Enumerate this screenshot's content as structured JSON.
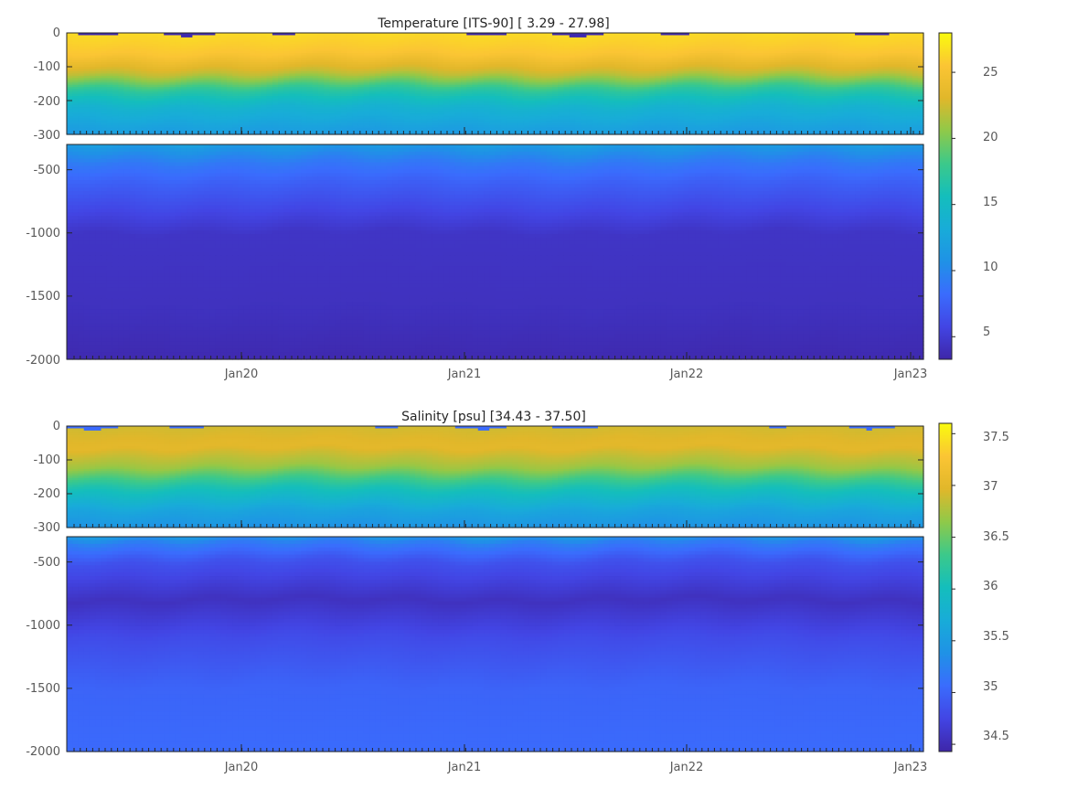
{
  "chart_data": [
    {
      "type": "heatmap",
      "title": "Temperature [ITS-90]   [ 3.29 - 27.98]",
      "xlabel": "",
      "ylabel": "",
      "x_tick_labels": [
        "Jan20",
        "Jan21",
        "Jan22",
        "Jan23"
      ],
      "upper_panel": {
        "ylim": [
          -300,
          0
        ],
        "y_ticks": [
          0,
          -100,
          -200,
          -300
        ],
        "y_tick_labels": [
          "0",
          "-100",
          "-200",
          "-300"
        ]
      },
      "lower_panel": {
        "ylim": [
          -2000,
          -300
        ],
        "y_ticks": [
          -500,
          -1000,
          -1500,
          -2000
        ],
        "y_tick_labels": [
          "-500",
          "-1000",
          "-1500",
          "-2000"
        ]
      },
      "value_range": [
        3.29,
        27.98
      ],
      "colorbar": {
        "ticks": [
          5,
          10,
          15,
          20,
          25
        ],
        "tick_labels": [
          "5",
          "10",
          "15",
          "20",
          "25"
        ],
        "range": [
          3.29,
          27.98
        ]
      },
      "depth_profile_levels": [
        {
          "depth": 0,
          "value": 26.5
        },
        {
          "depth": -60,
          "value": 25.5
        },
        {
          "depth": -120,
          "value": 22
        },
        {
          "depth": -170,
          "value": 17
        },
        {
          "depth": -220,
          "value": 14
        },
        {
          "depth": -300,
          "value": 11.5
        },
        {
          "depth": -450,
          "value": 9
        },
        {
          "depth": -600,
          "value": 7.5
        },
        {
          "depth": -800,
          "value": 6
        },
        {
          "depth": -1000,
          "value": 4.5
        },
        {
          "depth": -1600,
          "value": 4.2
        },
        {
          "depth": -2000,
          "value": 3.6
        }
      ],
      "grid": false
    },
    {
      "type": "heatmap",
      "title": "Salinity [psu]   [34.43 - 37.50]",
      "xlabel": "",
      "ylabel": "",
      "x_tick_labels": [
        "Jan20",
        "Jan21",
        "Jan22",
        "Jan23"
      ],
      "upper_panel": {
        "ylim": [
          -300,
          0
        ],
        "y_ticks": [
          0,
          -100,
          -200,
          -300
        ],
        "y_tick_labels": [
          "0",
          "-100",
          "-200",
          "-300"
        ]
      },
      "lower_panel": {
        "ylim": [
          -2000,
          -300
        ],
        "y_ticks": [
          -500,
          -1000,
          -1500,
          -2000
        ],
        "y_tick_labels": [
          "-500",
          "-1000",
          "-1500",
          "-2000"
        ]
      },
      "value_range": [
        34.43,
        37.5
      ],
      "colorbar": {
        "ticks": [
          34.5,
          35,
          35.5,
          36,
          36.5,
          37,
          37.5
        ],
        "tick_labels": [
          "34.5",
          "35",
          "35.5",
          "36",
          "36.5",
          "37",
          "37.5"
        ],
        "range": [
          34.43,
          37.6
        ]
      },
      "depth_profile_levels": [
        {
          "depth": 0,
          "value": 36.9
        },
        {
          "depth": -60,
          "value": 37.0
        },
        {
          "depth": -120,
          "value": 36.7
        },
        {
          "depth": -180,
          "value": 36.1
        },
        {
          "depth": -250,
          "value": 35.6
        },
        {
          "depth": -350,
          "value": 35.2
        },
        {
          "depth": -500,
          "value": 34.85
        },
        {
          "depth": -800,
          "value": 34.55
        },
        {
          "depth": -1100,
          "value": 34.8
        },
        {
          "depth": -1500,
          "value": 35.0
        },
        {
          "depth": -2000,
          "value": 35.05
        }
      ],
      "grid": false
    }
  ]
}
